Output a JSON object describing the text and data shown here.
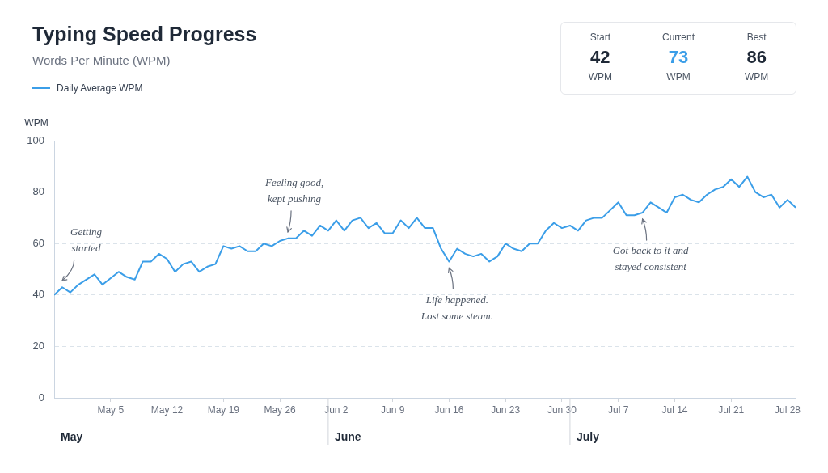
{
  "chart_data": [
    {
      "type": "line",
      "title": "Typing Speed Progress",
      "subtitle": "Words Per Minute (WPM)",
      "ylabel": "WPM",
      "x": [
        "--04-28",
        "--04-29",
        "--04-30",
        "--05-01",
        "--05-03",
        "--05-04",
        "--05-06",
        "--05-07",
        "--05-08",
        "--05-09",
        "--05-10",
        "--05-11",
        "--05-12",
        "--05-13",
        "--05-14",
        "--05-15",
        "--05-16",
        "--05-17",
        "--05-18",
        "--05-19",
        "--05-20",
        "--05-21",
        "--05-22",
        "--05-23",
        "--05-24",
        "--05-25",
        "--05-26",
        "--05-27",
        "--05-28",
        "--05-29",
        "--05-30",
        "--05-31",
        "--06-01",
        "--06-02",
        "--06-03",
        "--06-04",
        "--06-05",
        "--06-06",
        "--06-07",
        "--06-08",
        "--06-09",
        "--06-10",
        "--06-11",
        "--06-12",
        "--06-13",
        "--06-14",
        "--06-15",
        "--06-16",
        "--06-17",
        "--06-18",
        "--06-19",
        "--06-20",
        "--06-21",
        "--06-22",
        "--06-23",
        "--06-24",
        "--06-25",
        "--06-26",
        "--06-27",
        "--06-28",
        "--06-29",
        "--06-30",
        "--07-01",
        "--07-02",
        "--07-03",
        "--07-04",
        "--07-05",
        "--07-06",
        "--07-07",
        "--07-08",
        "--07-09",
        "--07-10",
        "--07-11",
        "--07-12",
        "--07-13",
        "--07-14",
        "--07-15",
        "--07-16",
        "--07-17",
        "--07-18",
        "--07-19",
        "--07-20",
        "--07-21",
        "--07-22",
        "--07-23",
        "--07-24",
        "--07-25",
        "--07-26",
        "--07-27",
        "--07-28",
        "--07-29"
      ],
      "series": [
        {
          "name": "Daily Average WPM",
          "color": "#3b9ee8",
          "values": [
            40,
            43,
            41,
            44,
            48,
            44,
            49,
            47,
            46,
            53,
            53,
            56,
            54,
            49,
            52,
            53,
            49,
            51,
            52,
            59,
            58,
            59,
            57,
            57,
            60,
            59,
            61,
            62,
            62,
            65,
            63,
            67,
            65,
            69,
            65,
            69,
            70,
            66,
            68,
            64,
            64,
            69,
            66,
            70,
            66,
            66,
            58,
            53,
            58,
            56,
            55,
            56,
            53,
            55,
            60,
            58,
            57,
            60,
            60,
            65,
            68,
            66,
            67,
            65,
            69,
            70,
            70,
            73,
            76,
            71,
            71,
            72,
            76,
            74,
            72,
            78,
            79,
            77,
            76,
            79,
            81,
            82,
            85,
            82,
            86,
            80,
            78,
            79,
            74,
            77,
            74
          ]
        }
      ],
      "xlim": [
        "--04-28",
        "--07-29"
      ],
      "xticks": [
        {
          "value": "--05-05",
          "label": "May 5"
        },
        {
          "value": "--05-12",
          "label": "May 12"
        },
        {
          "value": "--05-19",
          "label": "May 19"
        },
        {
          "value": "--05-26",
          "label": "May 26"
        },
        {
          "value": "--06-02",
          "label": "Jun 2"
        },
        {
          "value": "--06-09",
          "label": "Jun 9"
        },
        {
          "value": "--06-16",
          "label": "Jun 16"
        },
        {
          "value": "--06-23",
          "label": "Jun 23"
        },
        {
          "value": "--06-30",
          "label": "Jun 30"
        },
        {
          "value": "--07-07",
          "label": "Jul 7"
        },
        {
          "value": "--07-14",
          "label": "Jul 14"
        },
        {
          "value": "--07-21",
          "label": "Jul 21"
        },
        {
          "value": "--07-28",
          "label": "Jul 28"
        }
      ],
      "ylim": [
        0,
        100
      ],
      "yticks": [
        0,
        20,
        40,
        60,
        80,
        100
      ],
      "grid": "y",
      "legend": "top left",
      "marker": "none",
      "annotations": [
        {
          "text": "Getting\nstarted",
          "x": "--04-29",
          "y": 43
        },
        {
          "text": "Feeling good,\nkept pushing",
          "x": "--05-27",
          "y": 62
        },
        {
          "text": "Life happened.\nLost some steam.",
          "x": "--06-16",
          "y": 53
        },
        {
          "text": "Got back to it and\nstayed consistent",
          "x": "--07-10",
          "y": 72
        },
        "May",
        "June",
        "July"
      ]
    },
    {
      "type": "other",
      "annotations": [
        "Start",
        "42",
        "WPM",
        "Current",
        "73",
        "WPM",
        "Best",
        "86",
        "WPM"
      ]
    }
  ]
}
